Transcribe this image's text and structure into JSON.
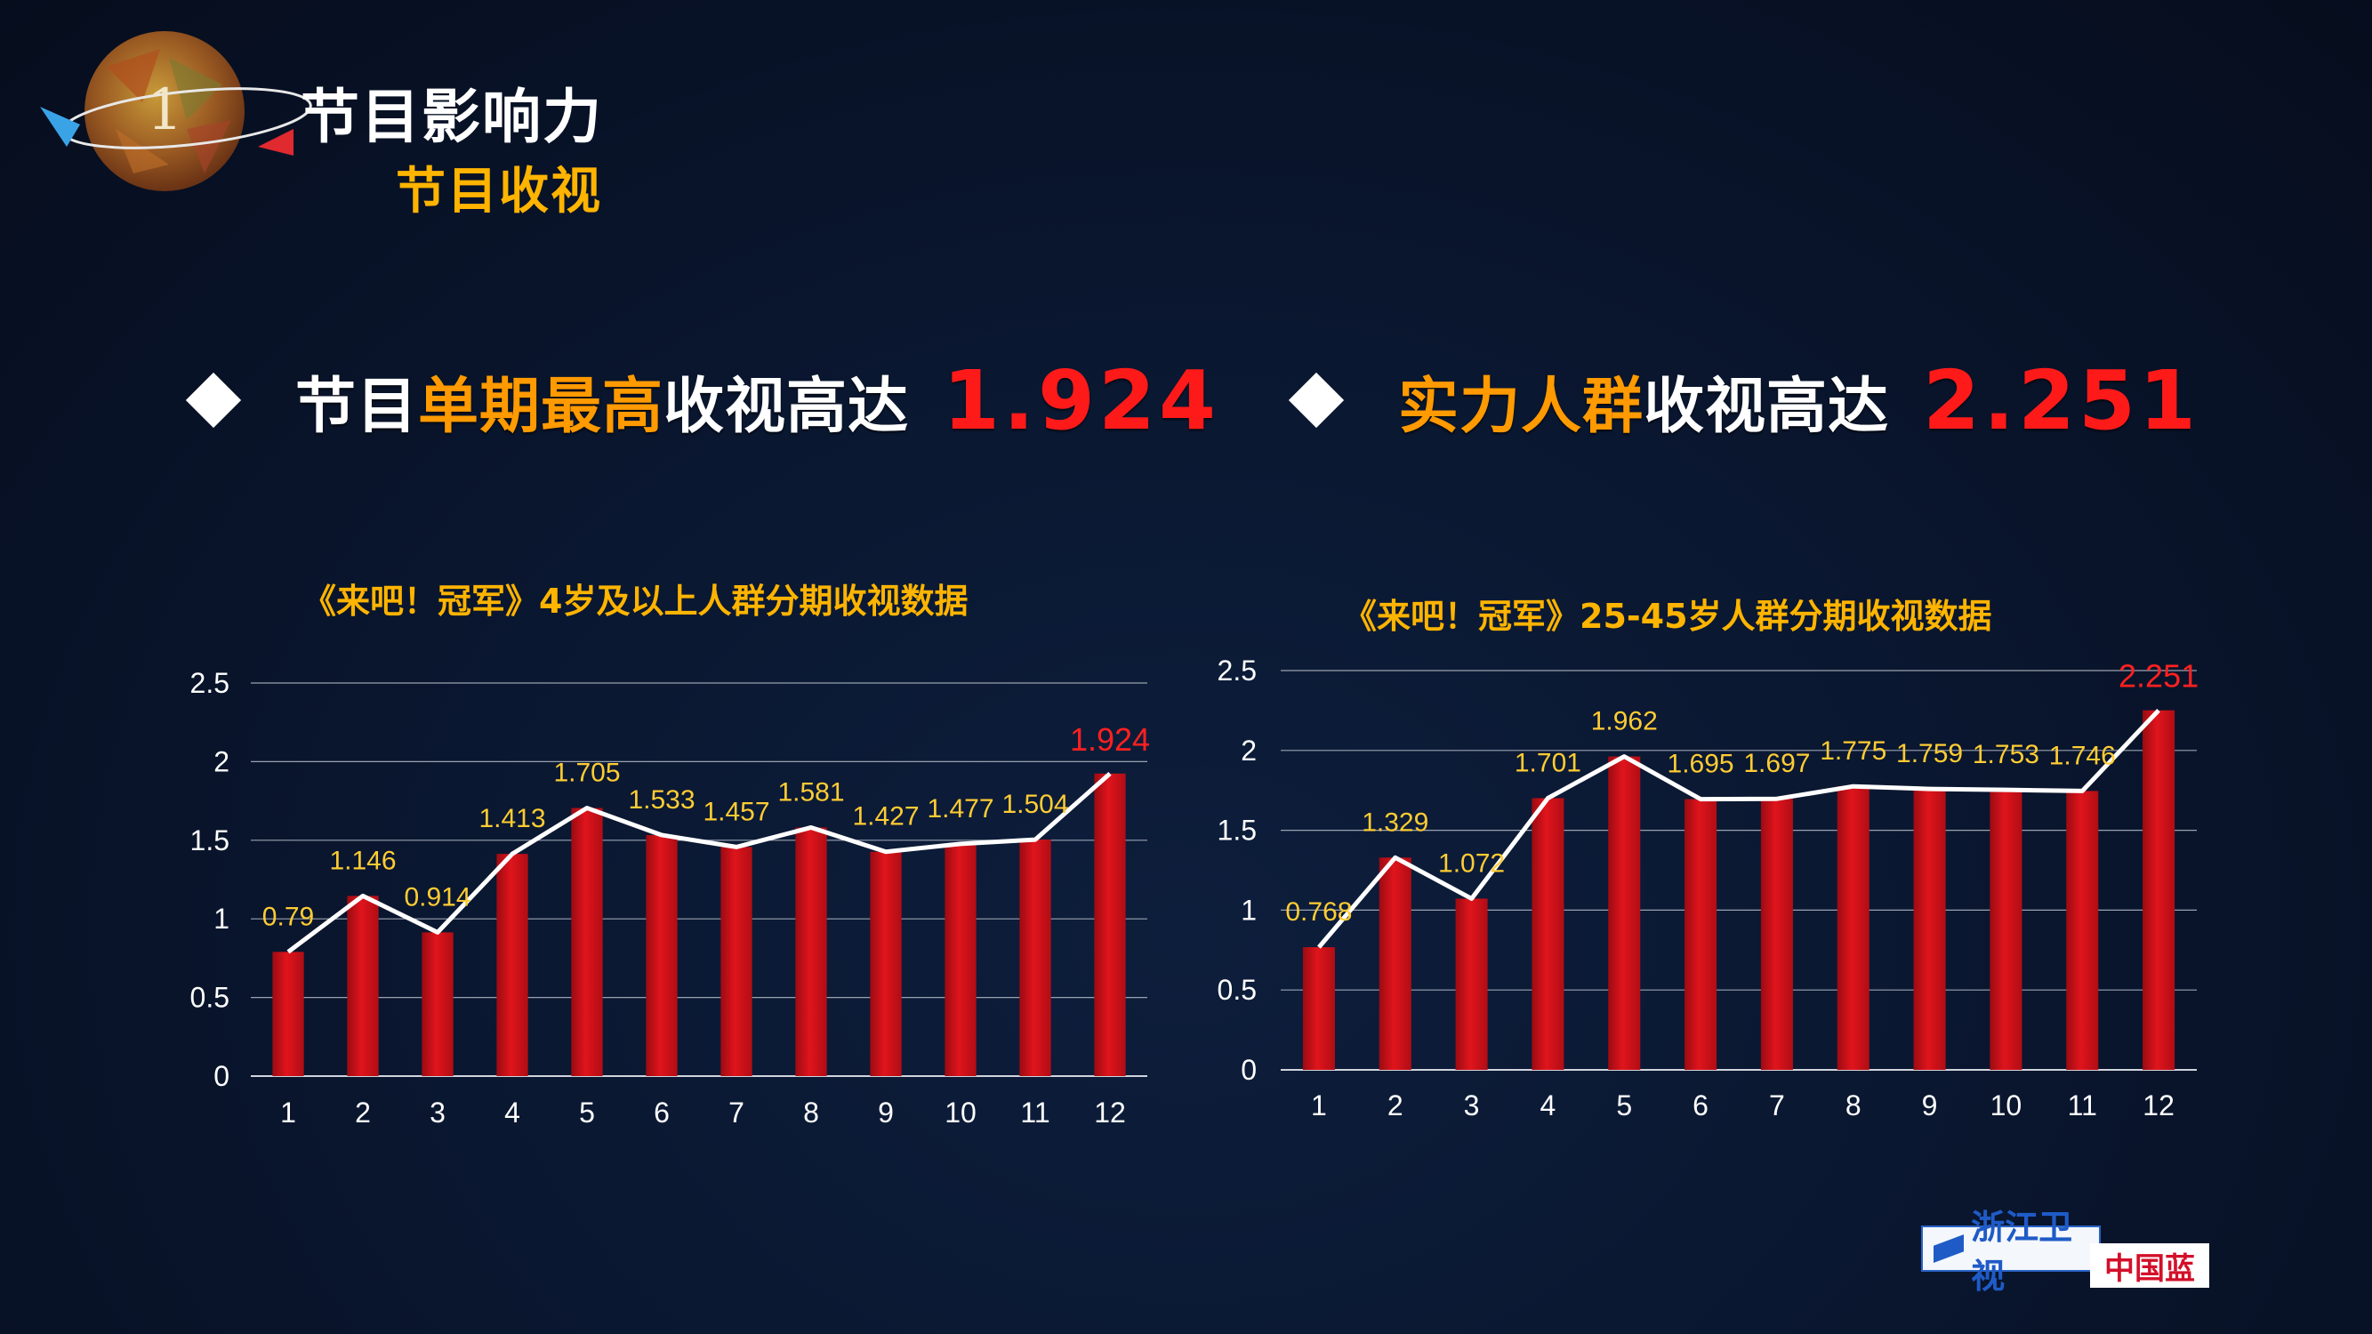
{
  "header": {
    "badge_number": "1",
    "title": "节目影响力",
    "subtitle": "节目收视"
  },
  "headline_left": {
    "part1": "节目",
    "part2": "单期最高",
    "part3": "收视高达",
    "value": "1.924"
  },
  "headline_right": {
    "part1": "实力人群",
    "part2": "收视高达",
    "value": "2.251"
  },
  "logo": {
    "channel": "浙江卫视",
    "slogan": "中国蓝"
  },
  "colors": {
    "bar": "#e0141c",
    "bar_highlight": "#ff1a1a",
    "line": "#ffffff",
    "label": "#ffcc33",
    "label_max": "#ff2020",
    "title": "#ffb400"
  },
  "chart_data": [
    {
      "type": "bar",
      "title": "《来吧！冠军》4岁及以上人群分期收视数据",
      "categories": [
        "1",
        "2",
        "3",
        "4",
        "5",
        "6",
        "7",
        "8",
        "9",
        "10",
        "11",
        "12"
      ],
      "values": [
        0.79,
        1.146,
        0.914,
        1.413,
        1.705,
        1.533,
        1.457,
        1.581,
        1.427,
        1.477,
        1.504,
        1.924
      ],
      "value_labels": [
        "0.79",
        "1.146",
        "0.914",
        "1.413",
        "1.705",
        "1.533",
        "1.457",
        "1.581",
        "1.427",
        "1.477",
        "1.504",
        "1.924"
      ],
      "y_ticks": [
        "0",
        "0.5",
        "1",
        "1.5",
        "2",
        "2.5"
      ],
      "ylim": [
        0,
        2.5
      ],
      "overlay_line": true,
      "grid": true,
      "legend": "none"
    },
    {
      "type": "bar",
      "title": "《来吧！冠军》25-45岁人群分期收视数据",
      "categories": [
        "1",
        "2",
        "3",
        "4",
        "5",
        "6",
        "7",
        "8",
        "9",
        "10",
        "11",
        "12"
      ],
      "values": [
        0.768,
        1.329,
        1.072,
        1.701,
        1.962,
        1.695,
        1.697,
        1.775,
        1.759,
        1.753,
        1.746,
        2.251
      ],
      "value_labels": [
        "0.768",
        "1.329",
        "1.072",
        "1.701",
        "1.962",
        "1.695",
        "1.697",
        "1.775",
        "1.759",
        "1.753",
        "1.746",
        "2.251"
      ],
      "y_ticks": [
        "0",
        "0.5",
        "1",
        "1.5",
        "2",
        "2.5"
      ],
      "ylim": [
        0,
        2.5
      ],
      "overlay_line": true,
      "grid": true,
      "legend": "none"
    }
  ]
}
